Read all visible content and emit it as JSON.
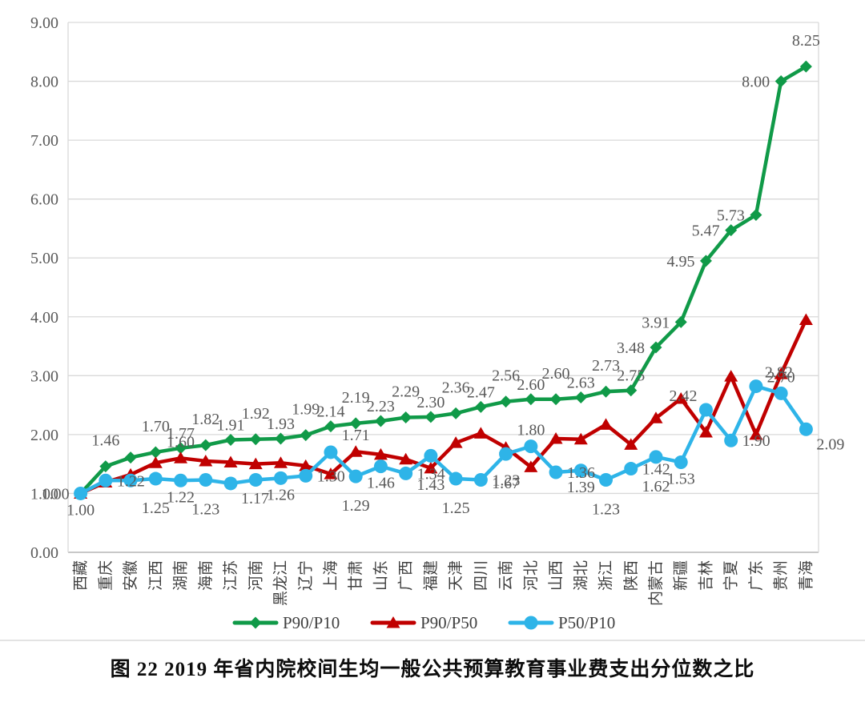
{
  "figure": {
    "caption": "图 22  2019 年省内院校间生均一般公共预算教育事业费支出分位数之比"
  },
  "chart_data": {
    "type": "line",
    "title": "",
    "xlabel": "",
    "ylabel": "",
    "ylim": [
      0,
      9
    ],
    "ytick_step": 1,
    "ytick_labels": [
      "0.00",
      "1.00",
      "2.00",
      "3.00",
      "4.00",
      "5.00",
      "6.00",
      "7.00",
      "8.00",
      "9.00"
    ],
    "grid": true,
    "legend_position": "bottom",
    "categories": [
      "西藏",
      "重庆",
      "安徽",
      "江西",
      "湖南",
      "海南",
      "江苏",
      "河南",
      "黑龙江",
      "辽宁",
      "上海",
      "甘肃",
      "山东",
      "广西",
      "福建",
      "天津",
      "四川",
      "云南",
      "河北",
      "山西",
      "湖北",
      "浙江",
      "陕西",
      "内蒙古",
      "新疆",
      "吉林",
      "宁夏",
      "广东",
      "贵州",
      "青海"
    ],
    "series": [
      {
        "name": "P90/P10",
        "marker": "diamond",
        "color": "#109a48",
        "values": [
          1.0,
          1.46,
          1.61,
          1.7,
          1.77,
          1.82,
          1.91,
          1.92,
          1.93,
          1.99,
          2.14,
          2.19,
          2.23,
          2.29,
          2.3,
          2.36,
          2.47,
          2.56,
          2.6,
          2.6,
          2.63,
          2.73,
          2.75,
          3.48,
          3.91,
          4.95,
          5.47,
          5.73,
          8.0,
          8.25
        ],
        "labels": [
          "1.00",
          "1.46",
          null,
          "1.70",
          "1.77",
          "1.82",
          "1.91",
          "1.92",
          "1.93",
          "1.99",
          "2.14",
          "2.19",
          "2.23",
          "2.29",
          "2.30",
          "2.36",
          "2.47",
          "2.56",
          "2.60",
          "2.60",
          "2.63",
          "2.73",
          "2.75",
          "3.48",
          "3.91",
          "4.95",
          "5.47",
          "5.73",
          "8.00",
          "8.25"
        ],
        "label_pos": [
          "l",
          "a",
          null,
          "a",
          "a",
          "a",
          "a",
          "a",
          "a",
          "a",
          "a",
          "a",
          "a",
          "a",
          "a",
          "a",
          "a",
          "a",
          "a",
          "a",
          "a",
          "a",
          "a",
          "l",
          "l",
          "l",
          "l",
          "l",
          "l",
          "a"
        ]
      },
      {
        "name": "P90/P50",
        "marker": "triangle",
        "color": "#c00000",
        "values": [
          1.0,
          1.19,
          1.32,
          1.52,
          1.6,
          1.55,
          1.53,
          1.5,
          1.52,
          1.47,
          1.33,
          1.71,
          1.66,
          1.58,
          1.43,
          1.86,
          2.02,
          1.78,
          1.45,
          1.93,
          1.92,
          2.17,
          1.83,
          2.28,
          2.61,
          2.04,
          2.99,
          2.0,
          3.03,
          3.95
        ],
        "labels": [
          null,
          null,
          null,
          null,
          "1.60",
          null,
          null,
          null,
          null,
          null,
          null,
          "1.71",
          null,
          null,
          "1.43",
          null,
          null,
          null,
          null,
          null,
          null,
          null,
          null,
          null,
          null,
          null,
          null,
          null,
          null,
          null
        ],
        "label_pos": [
          null,
          null,
          null,
          null,
          "a",
          null,
          null,
          null,
          null,
          null,
          null,
          "a",
          null,
          null,
          "b",
          null,
          null,
          null,
          null,
          null,
          null,
          null,
          null,
          null,
          null,
          null,
          null,
          null,
          null,
          null
        ]
      },
      {
        "name": "P50/P10",
        "marker": "circle",
        "color": "#2eb4e8",
        "values": [
          1.0,
          1.22,
          1.22,
          1.25,
          1.22,
          1.23,
          1.17,
          1.23,
          1.26,
          1.3,
          1.7,
          1.29,
          1.46,
          1.34,
          1.64,
          1.25,
          1.23,
          1.67,
          1.8,
          1.36,
          1.39,
          1.23,
          1.42,
          1.62,
          1.53,
          2.42,
          1.9,
          2.82,
          2.7,
          2.09
        ],
        "labels": [
          "1.00",
          "1.22",
          null,
          "1.25",
          "1.22",
          "1.23",
          "1.17",
          null,
          "1.26",
          "1.30",
          null,
          "1.29",
          "1.46",
          "1.34",
          null,
          "1.25",
          "1.23",
          "1.67",
          "1.80",
          "1.36",
          "1.39",
          "1.23",
          "1.42",
          "1.62",
          "1.53",
          "2.42",
          "1.90",
          "2.82",
          "2.70",
          "2.09"
        ],
        "label_pos": [
          "b",
          "r",
          null,
          "b",
          "b",
          "b",
          "br",
          null,
          "b",
          "r",
          null,
          "b",
          "b",
          "r",
          null,
          "b",
          "r",
          "b",
          "a",
          "r",
          "b",
          "b",
          "r",
          "b",
          "b",
          "al",
          "r",
          "ar",
          "a",
          "br"
        ]
      }
    ],
    "colors": {
      "grid": "#d9d9d9",
      "plot_border": "#d9d9d9",
      "axis_line": "#a6a6a6",
      "axis_text": "#595959",
      "category_text": "#3f3f3f",
      "data_label_text": "#595959",
      "legend_text": "#404040"
    }
  }
}
